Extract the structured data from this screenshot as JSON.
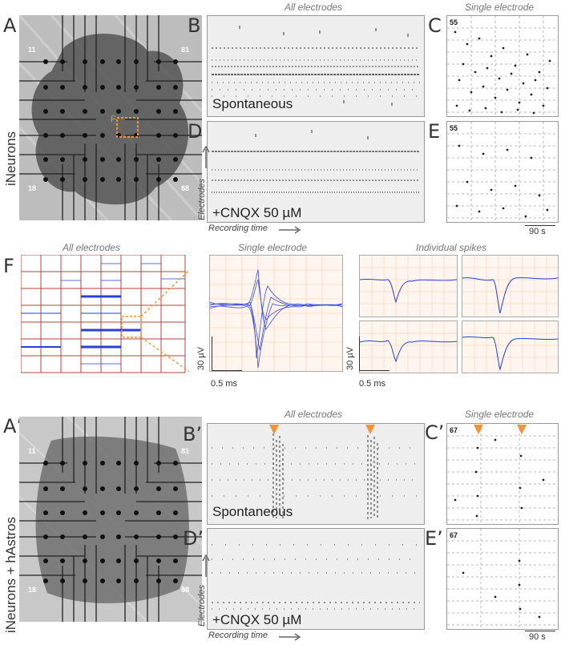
{
  "panels": {
    "A": "A",
    "B": "B",
    "C": "C",
    "D": "D",
    "E": "E",
    "F": "F",
    "A2": "A’",
    "B2": "B’",
    "C2": "C’",
    "D2": "D’",
    "E2": "E’"
  },
  "row_labels": {
    "top": "iNeurons",
    "bottom": "iNeurons + hAstros"
  },
  "section_titles": {
    "all_electrodes_top": "All electrodes",
    "single_electrode_top": "Single electrode",
    "all_electrodes_mid": "All electrodes",
    "single_electrode_mid": "Single electrode",
    "individual_spikes": "Individual spikes",
    "all_electrodes_bottom": "All electrodes",
    "single_electrode_bottom": "Single electrode"
  },
  "conditions": {
    "spontaneous": "Spontaneous",
    "cnqx": "+CNQX 50 µM"
  },
  "axes": {
    "electrodes": "Electrodes",
    "recording_time": "Recording time"
  },
  "electrode_ids": {
    "mea_top_left": "11",
    "mea_top_right": "81",
    "mea_bottom_left": "18",
    "mea_bottom_right": "88",
    "single_top": "55",
    "single_bottom": "67"
  },
  "inset_marker": "F",
  "scale_bars": {
    "time_90s": "90 s",
    "amp_30uv": "30 µV",
    "time_05ms": "0.5 ms"
  },
  "colors": {
    "accent_orange": "#f0943a",
    "trace_blue": "#2a3fd9",
    "grid_red": "#b2463c"
  }
}
